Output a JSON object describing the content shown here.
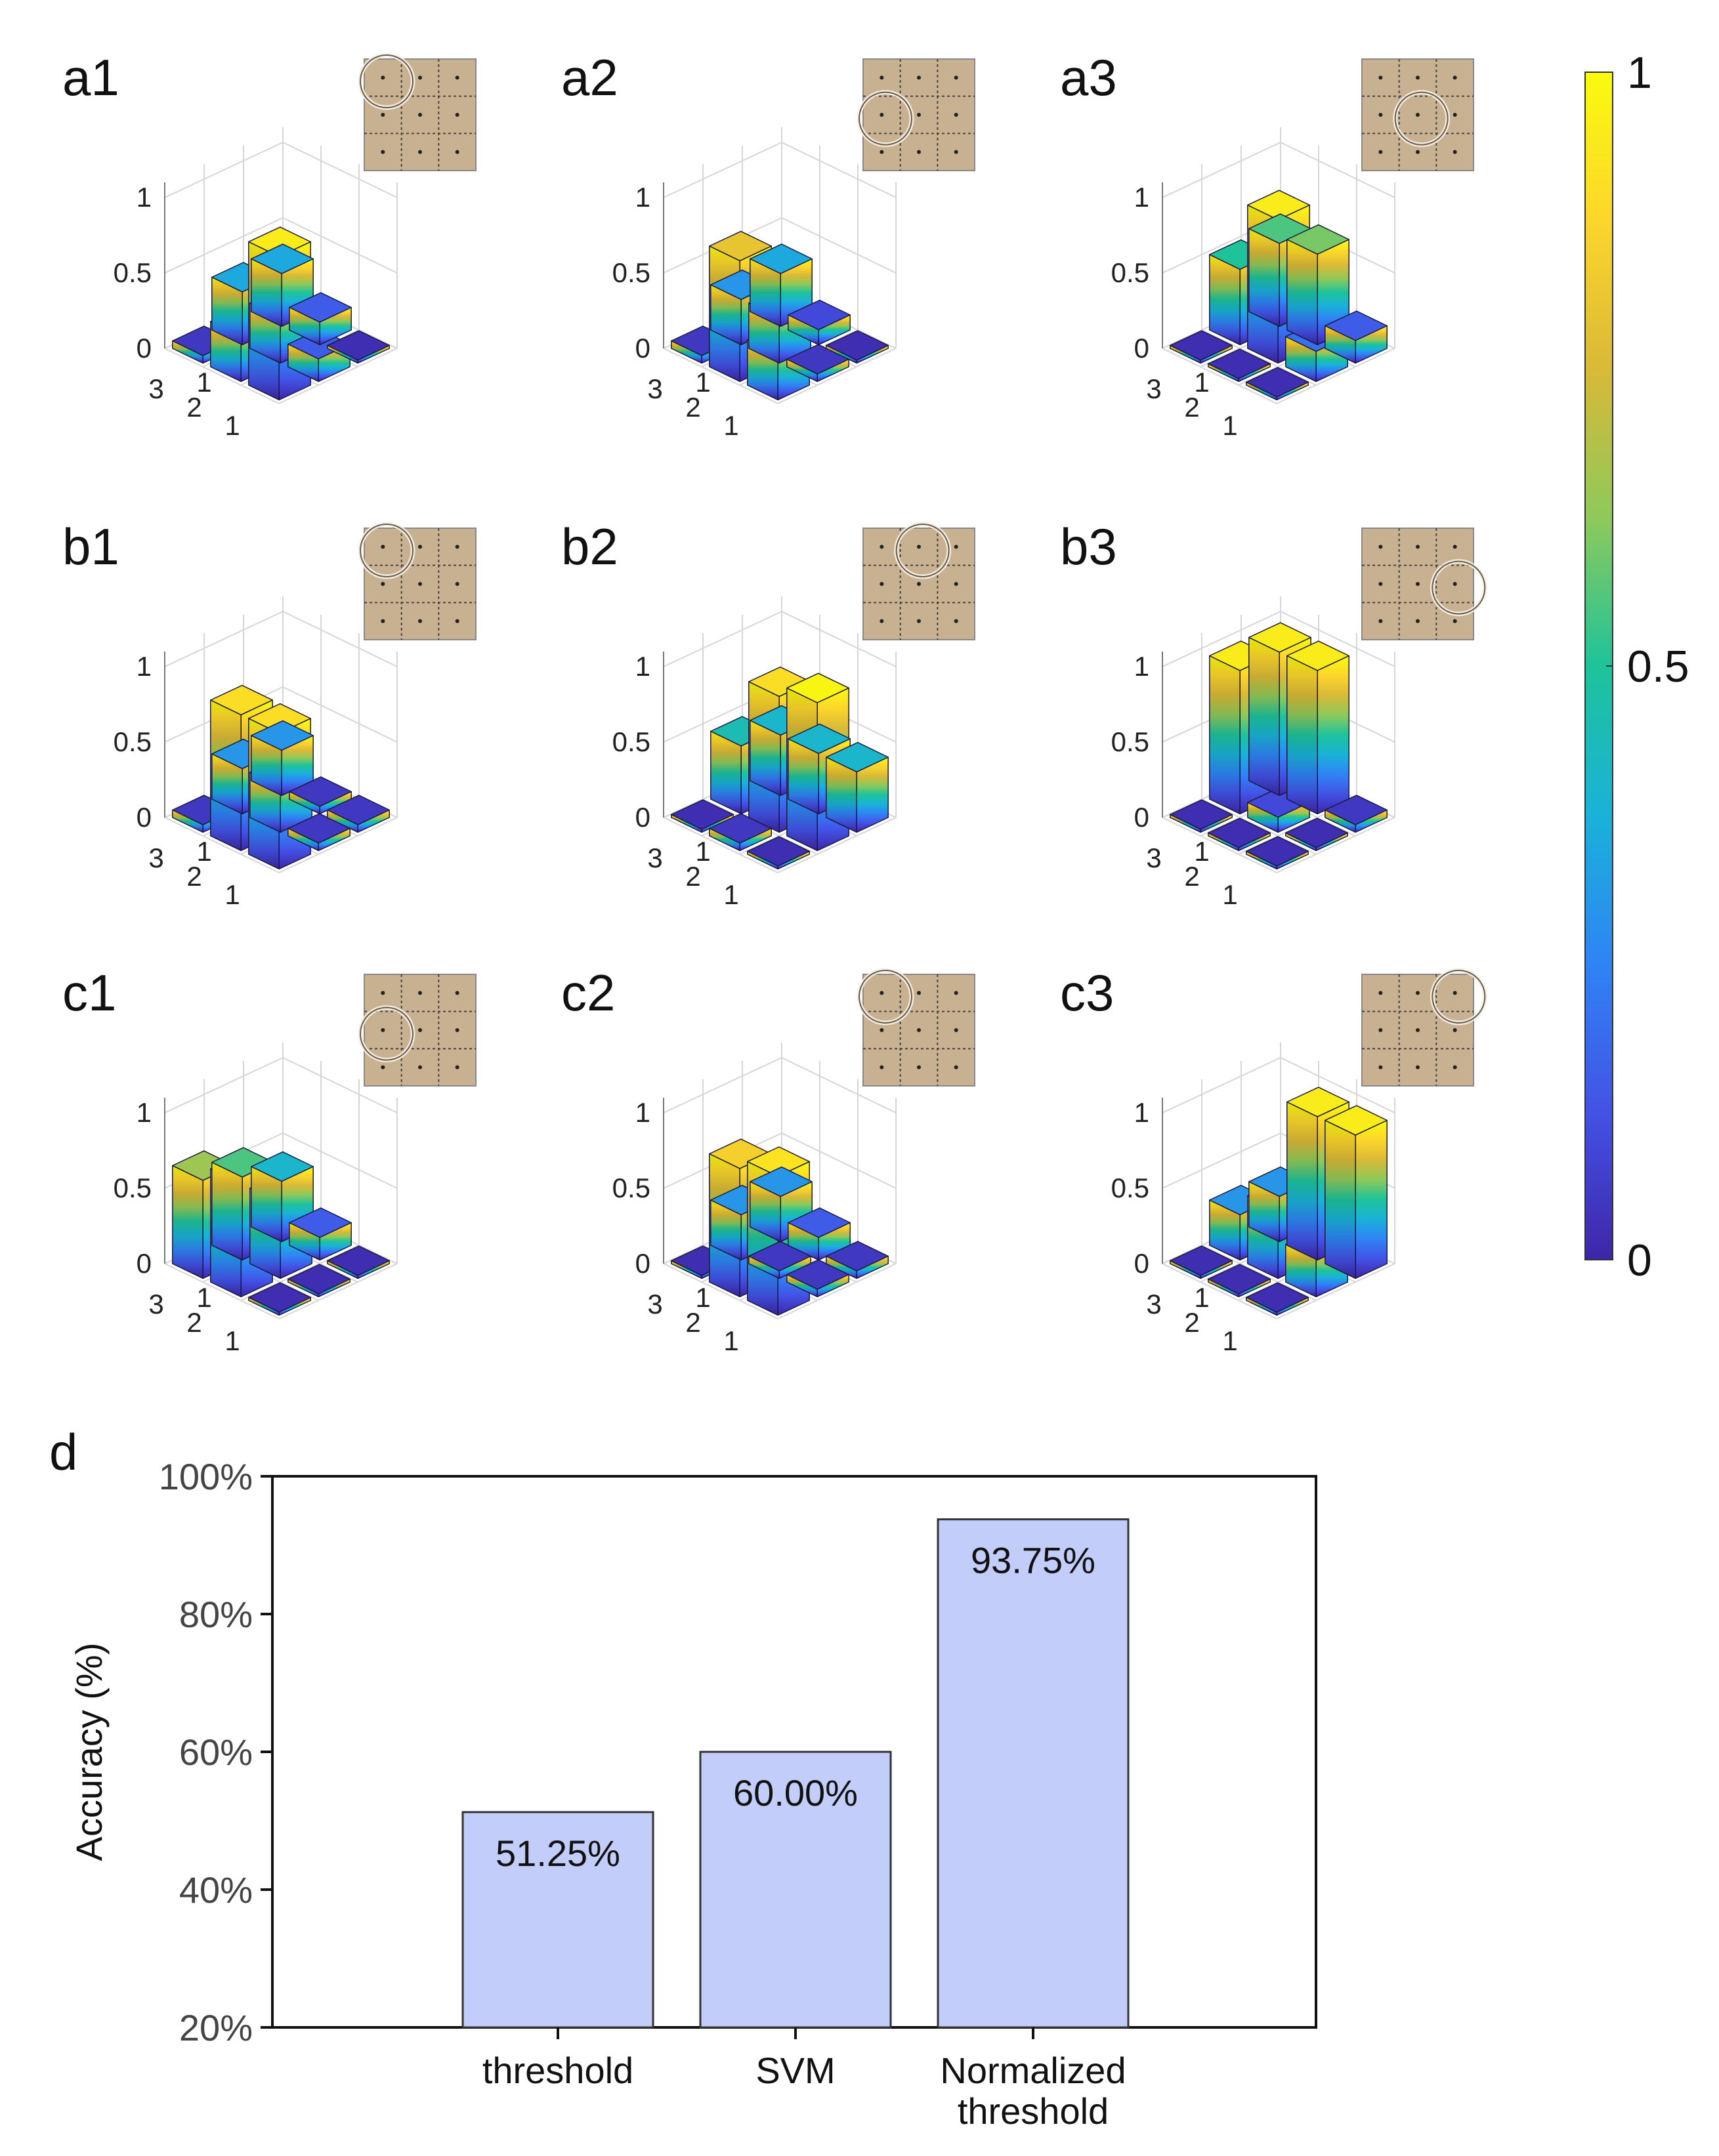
{
  "chart_data": [
    {
      "type": "bar3d",
      "panel": "a1",
      "title": "a1",
      "x_ticks": [
        "1",
        "2",
        "3"
      ],
      "y_ticks": [
        "1",
        "2",
        "3"
      ],
      "z_ticks": [
        "0",
        "0.5",
        "1"
      ],
      "zlim": [
        0,
        1
      ],
      "grid": [
        [
          0.95,
          0.15,
          0.02
        ],
        [
          0.3,
          0.3,
          0.15
        ],
        [
          0.05,
          0.35,
          0.35
        ]
      ]
    },
    {
      "type": "bar3d",
      "panel": "a2",
      "title": "a2",
      "x_ticks": [
        "1",
        "2",
        "3"
      ],
      "y_ticks": [
        "1",
        "2",
        "3"
      ],
      "z_ticks": [
        "0",
        "0.5",
        "1"
      ],
      "zlim": [
        0,
        1
      ],
      "grid": [
        [
          0.3,
          0.05,
          0.02
        ],
        [
          0.8,
          0.3,
          0.1
        ],
        [
          0.05,
          0.3,
          0.35
        ]
      ]
    },
    {
      "type": "bar3d",
      "panel": "a3",
      "title": "a3",
      "x_ticks": [
        "1",
        "2",
        "3"
      ],
      "y_ticks": [
        "1",
        "2",
        "3"
      ],
      "z_ticks": [
        "0",
        "0.5",
        "1"
      ],
      "zlim": [
        0,
        1
      ],
      "grid": [
        [
          0.02,
          0.2,
          0.15
        ],
        [
          0.02,
          0.95,
          0.6
        ],
        [
          0.02,
          0.5,
          0.55
        ]
      ]
    },
    {
      "type": "bar3d",
      "panel": "b1",
      "title": "b1",
      "x_ticks": [
        "1",
        "2",
        "3"
      ],
      "y_ticks": [
        "1",
        "2",
        "3"
      ],
      "z_ticks": [
        "0",
        "0.5",
        "1"
      ],
      "zlim": [
        0,
        1
      ],
      "grid": [
        [
          0.9,
          0.05,
          0.05
        ],
        [
          0.9,
          0.3,
          0.05
        ],
        [
          0.05,
          0.3,
          0.3
        ]
      ]
    },
    {
      "type": "bar3d",
      "panel": "b2",
      "title": "b2",
      "x_ticks": [
        "1",
        "2",
        "3"
      ],
      "y_ticks": [
        "1",
        "2",
        "3"
      ],
      "z_ticks": [
        "0",
        "0.5",
        "1"
      ],
      "zlim": [
        0,
        1
      ],
      "grid": [
        [
          0.02,
          0.98,
          0.4
        ],
        [
          0.05,
          0.9,
          0.4
        ],
        [
          0.02,
          0.45,
          0.4
        ]
      ]
    },
    {
      "type": "bar3d",
      "panel": "b3",
      "title": "b3",
      "x_ticks": [
        "1",
        "2",
        "3"
      ],
      "y_ticks": [
        "1",
        "2",
        "3"
      ],
      "z_ticks": [
        "0",
        "0.5",
        "1"
      ],
      "zlim": [
        0,
        1
      ],
      "grid": [
        [
          0.02,
          0.02,
          0.05
        ],
        [
          0.02,
          0.1,
          0.95
        ],
        [
          0.02,
          0.95,
          0.95
        ]
      ]
    },
    {
      "type": "bar3d",
      "panel": "c1",
      "title": "c1",
      "x_ticks": [
        "1",
        "2",
        "3"
      ],
      "y_ticks": [
        "1",
        "2",
        "3"
      ],
      "z_ticks": [
        "0",
        "0.5",
        "1"
      ],
      "zlim": [
        0,
        1
      ],
      "grid": [
        [
          0.02,
          0.02,
          0.02
        ],
        [
          0.75,
          0.5,
          0.15
        ],
        [
          0.65,
          0.55,
          0.4
        ]
      ]
    },
    {
      "type": "bar3d",
      "panel": "c2",
      "title": "c2",
      "x_ticks": [
        "1",
        "2",
        "3"
      ],
      "y_ticks": [
        "1",
        "2",
        "3"
      ],
      "z_ticks": [
        "0",
        "0.5",
        "1"
      ],
      "zlim": [
        0,
        1
      ],
      "grid": [
        [
          0.92,
          0.05,
          0.05
        ],
        [
          0.85,
          0.05,
          0.15
        ],
        [
          0.02,
          0.3,
          0.3
        ]
      ]
    },
    {
      "type": "bar3d",
      "panel": "c3",
      "title": "c3",
      "x_ticks": [
        "1",
        "2",
        "3"
      ],
      "y_ticks": [
        "1",
        "2",
        "3"
      ],
      "z_ticks": [
        "0",
        "0.5",
        "1"
      ],
      "zlim": [
        0,
        1
      ],
      "grid": [
        [
          0.02,
          0.25,
          0.95
        ],
        [
          0.02,
          0.45,
          0.95
        ],
        [
          0.02,
          0.3,
          0.3
        ]
      ]
    },
    {
      "type": "colorbar",
      "ticks": [
        "0",
        "0.5",
        "1"
      ],
      "range": [
        0,
        1
      ],
      "colormap": [
        "#3e26a8",
        "#4352e6",
        "#2f84f5",
        "#1ab2d8",
        "#1ec39a",
        "#8ec95a",
        "#d9b937",
        "#fcd62b",
        "#f9fb0e"
      ]
    },
    {
      "type": "bar",
      "panel": "d",
      "title": "d",
      "categories": [
        [
          "threshold"
        ],
        [
          "SVM"
        ],
        [
          "Normalized",
          "threshold"
        ]
      ],
      "values": [
        51.25,
        60.0,
        93.75
      ],
      "labels": [
        "51.25%",
        "60.00%",
        "93.75%"
      ],
      "ylabel": "Accuracy (%)",
      "ylim": [
        20,
        100
      ],
      "yticks": [
        20,
        40,
        60,
        80,
        100
      ],
      "ytick_labels": [
        "20%",
        "40%",
        "60%",
        "80%",
        "100%"
      ],
      "bar_color": "#c3cdfa",
      "edge_color": "#333333"
    }
  ]
}
